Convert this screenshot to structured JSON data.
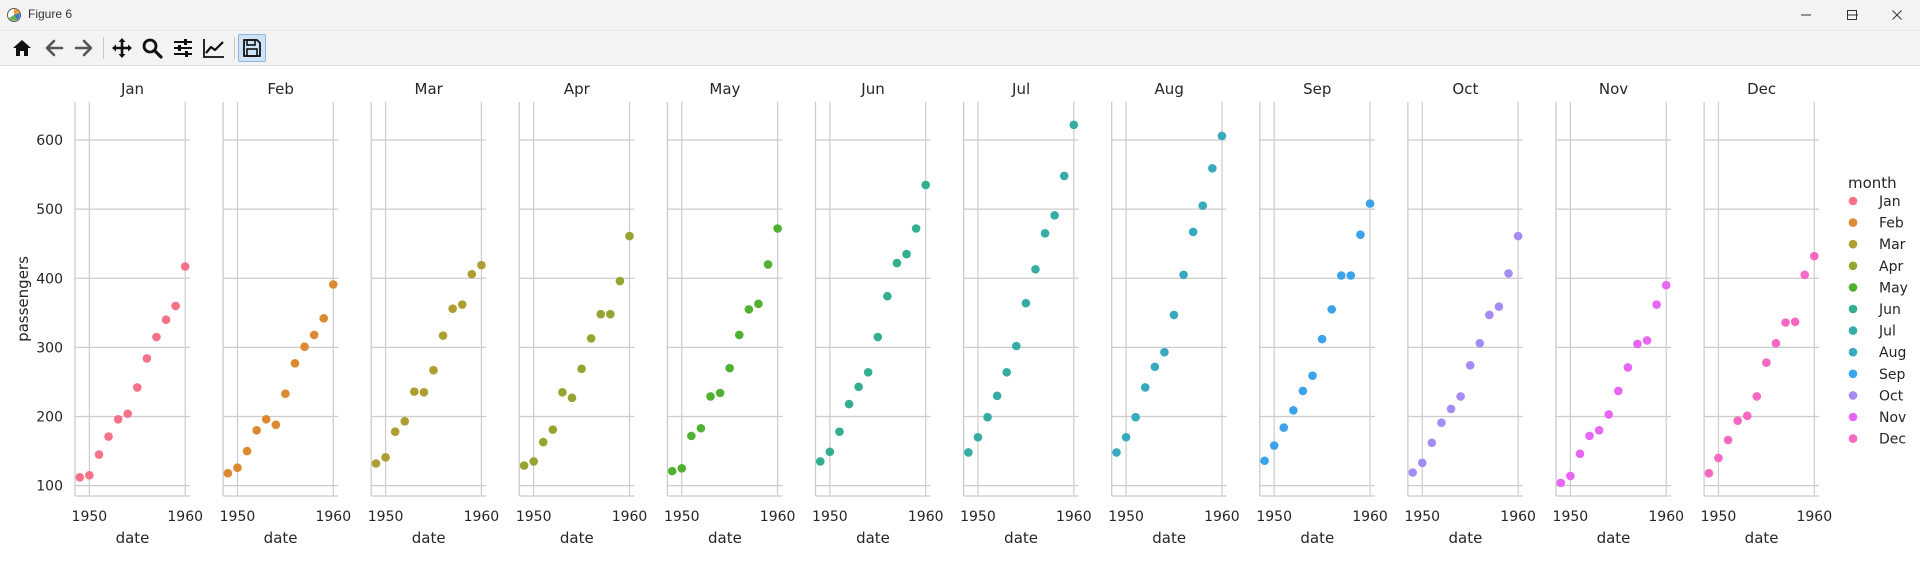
{
  "window": {
    "title": "Figure 6",
    "app_icon": "matplotlib-icon",
    "controls": [
      "minimize-icon",
      "maximize-icon",
      "close-icon"
    ]
  },
  "toolbar": {
    "buttons": [
      {
        "name": "home",
        "icon": "home-icon"
      },
      {
        "name": "back",
        "icon": "back-arrow-icon"
      },
      {
        "name": "forward",
        "icon": "forward-arrow-icon"
      },
      {
        "name": "pan",
        "icon": "move-icon"
      },
      {
        "name": "zoom",
        "icon": "zoom-icon"
      },
      {
        "name": "subplots",
        "icon": "sliders-icon"
      },
      {
        "name": "customize",
        "icon": "line-chart-icon"
      },
      {
        "name": "save",
        "icon": "save-icon"
      }
    ]
  },
  "chart_data": {
    "type": "scatter",
    "xlabel": "date",
    "ylabel": "passengers",
    "ylim": [
      85,
      655
    ],
    "xlim": [
      1948.5,
      1960.5
    ],
    "xticks": [
      1950,
      1960
    ],
    "yticks": [
      100,
      200,
      300,
      400,
      500,
      600
    ],
    "grid": true,
    "legend": {
      "title": "month",
      "position": "right"
    },
    "x": [
      1949,
      1950,
      1951,
      1952,
      1953,
      1954,
      1955,
      1956,
      1957,
      1958,
      1959,
      1960
    ],
    "series": [
      {
        "name": "Jan",
        "color": "#f77189",
        "values": [
          112,
          115,
          145,
          171,
          196,
          204,
          242,
          284,
          315,
          340,
          360,
          417
        ]
      },
      {
        "name": "Feb",
        "color": "#dc8932",
        "values": [
          118,
          126,
          150,
          180,
          196,
          188,
          233,
          277,
          301,
          318,
          342,
          391
        ]
      },
      {
        "name": "Mar",
        "color": "#ae9d31",
        "values": [
          132,
          141,
          178,
          193,
          236,
          235,
          267,
          317,
          356,
          362,
          406,
          419
        ]
      },
      {
        "name": "Apr",
        "color": "#97a431",
        "values": [
          129,
          135,
          163,
          181,
          235,
          227,
          269,
          313,
          348,
          348,
          396,
          461
        ]
      },
      {
        "name": "May",
        "color": "#50b131",
        "values": [
          121,
          125,
          172,
          183,
          229,
          234,
          270,
          318,
          355,
          363,
          420,
          472
        ]
      },
      {
        "name": "Jun",
        "color": "#34ae91",
        "values": [
          135,
          149,
          178,
          218,
          243,
          264,
          315,
          374,
          422,
          435,
          472,
          535
        ]
      },
      {
        "name": "Jul",
        "color": "#36ada4",
        "values": [
          148,
          170,
          199,
          230,
          264,
          302,
          364,
          413,
          465,
          491,
          548,
          622
        ]
      },
      {
        "name": "Aug",
        "color": "#38aabd",
        "values": [
          148,
          170,
          199,
          242,
          272,
          293,
          347,
          405,
          467,
          505,
          559,
          606
        ]
      },
      {
        "name": "Sep",
        "color": "#3ba3ec",
        "values": [
          136,
          158,
          184,
          209,
          237,
          259,
          312,
          355,
          404,
          404,
          463,
          508
        ]
      },
      {
        "name": "Oct",
        "color": "#a48cf4",
        "values": [
          119,
          133,
          162,
          191,
          211,
          229,
          274,
          306,
          347,
          359,
          407,
          461
        ]
      },
      {
        "name": "Nov",
        "color": "#e866f4",
        "values": [
          104,
          114,
          146,
          172,
          180,
          203,
          237,
          271,
          305,
          310,
          362,
          390
        ]
      },
      {
        "name": "Dec",
        "color": "#f668c2",
        "values": [
          118,
          140,
          166,
          194,
          201,
          229,
          278,
          306,
          336,
          337,
          405,
          432
        ]
      }
    ]
  }
}
